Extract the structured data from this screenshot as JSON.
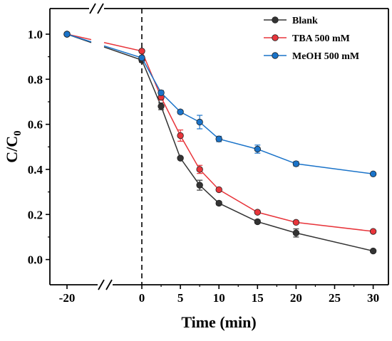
{
  "chart_data": {
    "type": "line",
    "title": "",
    "xlabel": "Time (min)",
    "ylabel": "C/C0",
    "ylabel_main": "C/C",
    "ylabel_sub": "0",
    "x_ticks": [
      "-20",
      "0",
      "5",
      "10",
      "15",
      "20",
      "25",
      "30"
    ],
    "y_ticks": [
      "0.0",
      "0.2",
      "0.4",
      "0.6",
      "0.8",
      "1.0"
    ],
    "ylim": [
      -0.1,
      1.1
    ],
    "xlim": [
      -25,
      32
    ],
    "axis_break": true,
    "vertical_reference_x": 0,
    "legend_position": "top-right",
    "series": [
      {
        "name": "Blank",
        "color": "#333333",
        "x": [
          -20,
          0,
          2.5,
          5,
          7.5,
          10,
          15,
          20,
          30
        ],
        "y": [
          1.0,
          0.885,
          0.68,
          0.45,
          0.33,
          0.25,
          0.168,
          0.118,
          0.038
        ],
        "err": [
          0,
          0.01,
          0.015,
          0.005,
          0.022,
          0.008,
          0.008,
          0.018,
          0.004
        ]
      },
      {
        "name": "TBA 500 mM",
        "color": "#e8353b",
        "x": [
          -20,
          0,
          2.5,
          5,
          7.5,
          10,
          15,
          20,
          30
        ],
        "y": [
          1.0,
          0.925,
          0.72,
          0.55,
          0.4,
          0.31,
          0.21,
          0.165,
          0.125
        ],
        "err": [
          0,
          0.006,
          0.012,
          0.025,
          0.018,
          0.006,
          0.006,
          0.006,
          0.005
        ]
      },
      {
        "name": "MeOH 500 mM",
        "color": "#1a73c9",
        "x": [
          -20,
          0,
          2.5,
          5,
          7.5,
          10,
          15,
          20,
          30
        ],
        "y": [
          1.0,
          0.895,
          0.74,
          0.655,
          0.61,
          0.535,
          0.49,
          0.425,
          0.38
        ],
        "err": [
          0,
          0.008,
          0.01,
          0.008,
          0.03,
          0.012,
          0.018,
          0.01,
          0.005
        ]
      }
    ]
  }
}
